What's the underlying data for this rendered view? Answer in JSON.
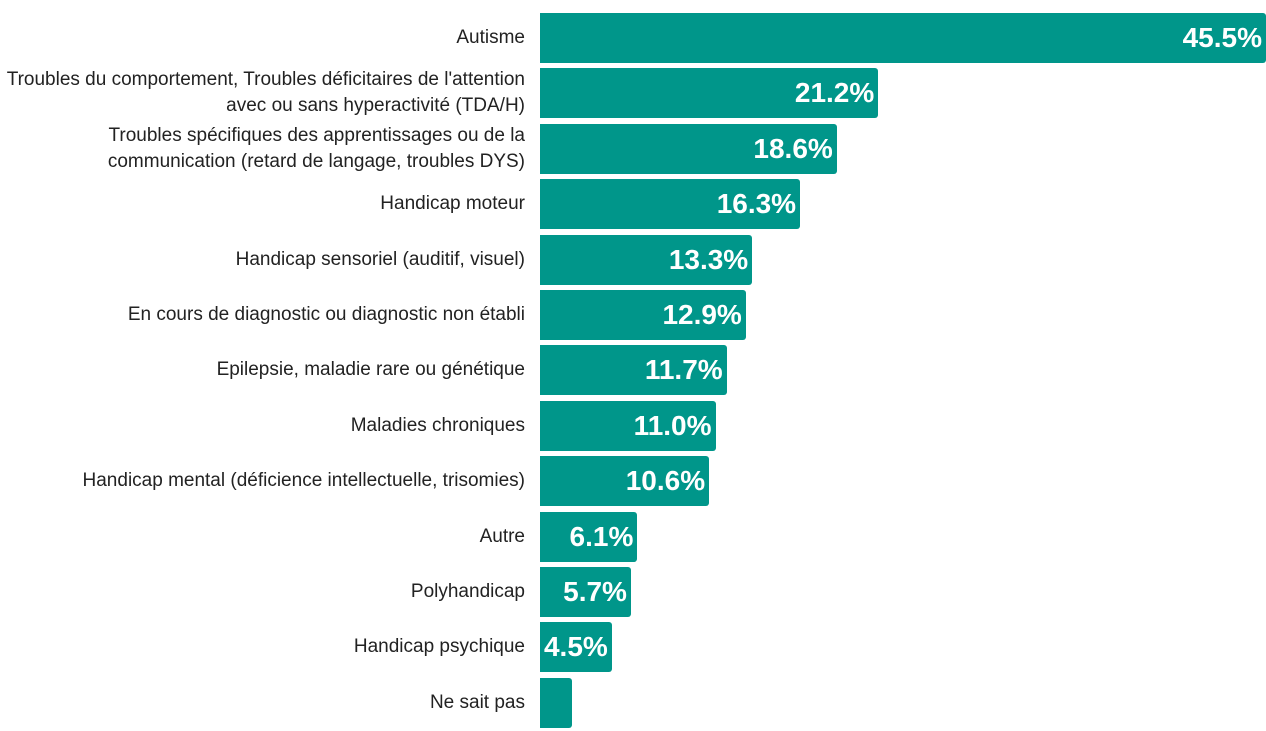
{
  "chart_data": {
    "type": "bar",
    "orientation": "horizontal",
    "color": "#00968a",
    "categories": [
      "Autisme",
      "Troubles du comportement, Troubles déficitaires de l'attention avec ou sans hyperactivité (TDA/H)",
      "Troubles spécifiques des apprentissages ou de la communication (retard de langage, troubles DYS)",
      "Handicap moteur",
      "Handicap sensoriel (auditif, visuel)",
      "En cours de diagnostic ou diagnostic non établi",
      "Epilepsie, maladie rare ou génétique",
      "Maladies chroniques",
      "Handicap mental (déficience intellectuelle, trisomies)",
      "Autre",
      "Polyhandicap",
      "Handicap psychique",
      "Ne sait pas"
    ],
    "values": [
      45.5,
      21.2,
      18.6,
      16.3,
      13.3,
      12.9,
      11.7,
      11.0,
      10.6,
      6.1,
      5.7,
      4.5,
      2.0
    ],
    "value_labels": [
      "45.5%",
      "21.2%",
      "18.6%",
      "16.3%",
      "13.3%",
      "12.9%",
      "11.7%",
      "11.0%",
      "10.6%",
      "6.1%",
      "5.7%",
      "4.5%",
      null
    ]
  }
}
